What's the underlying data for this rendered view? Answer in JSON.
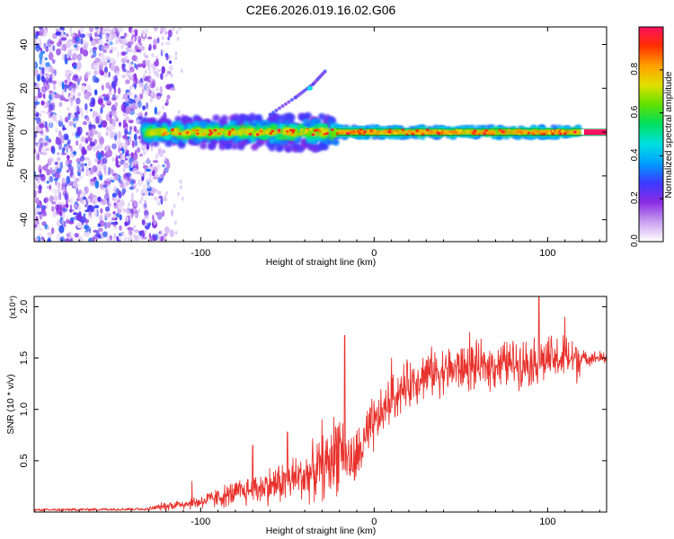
{
  "title": "C2E6.2026.019.16.02.G06",
  "colors": {
    "snr_line": "#e8322c",
    "frame": "#000000",
    "spectrum_line": "#008a3c"
  },
  "chart_data": [
    {
      "type": "heatmap",
      "xlabel": "Height of straight line (km)",
      "ylabel": "Frequency (Hz)",
      "xlim": [
        -196,
        134
      ],
      "ylim": [
        -50,
        48
      ],
      "x_ticks": [
        -100,
        0,
        100
      ],
      "x_tick_labels": [
        "-100",
        "0",
        "100"
      ],
      "y_ticks": [
        -40,
        -20,
        0,
        20,
        40
      ],
      "y_tick_labels": [
        "-40",
        "-20",
        "0",
        "20",
        "40"
      ],
      "colorbar": {
        "label": "Normalized spectral amplitude",
        "range": [
          0,
          1
        ],
        "ticks": [
          0.0,
          0.2,
          0.4,
          0.6,
          0.8
        ],
        "tick_labels": [
          "0.0",
          "0.2",
          "0.4",
          "0.6",
          "0.8"
        ],
        "colormap": [
          "#ffffff",
          "#c8a0f0",
          "#8a2be2",
          "#3a3aff",
          "#00a0ff",
          "#00e0e0",
          "#00e060",
          "#60e000",
          "#e0e000",
          "#ffa000",
          "#ff3000",
          "#ff1060"
        ]
      },
      "features": {
        "noise_region_x": [
          -196,
          -120
        ],
        "noise_fade_x": [
          -140,
          -115
        ],
        "band_center_hz": 0,
        "band_start_x": -133,
        "band_broad_end_x": -22,
        "band_end_x": 118,
        "spectral_line_hz": -1.5,
        "faint_arc": [
          [
            -60,
            8
          ],
          [
            -45,
            16
          ],
          [
            -35,
            22
          ],
          [
            -28,
            28
          ]
        ]
      }
    },
    {
      "type": "line",
      "xlabel": "Height of straight line (km)",
      "ylabel": "SNR (10 * v/v)",
      "y_scale_label": "(x10⁴)",
      "xlim": [
        -196,
        134
      ],
      "ylim": [
        0,
        2.1
      ],
      "x_ticks": [
        -100,
        0,
        100
      ],
      "x_tick_labels": [
        "-100",
        "0",
        "100"
      ],
      "y_ticks": [
        0.5,
        1.0,
        1.5,
        2.0
      ],
      "y_tick_labels": [
        "0.5",
        "1.0",
        "1.5",
        "2.0"
      ],
      "series": [
        {
          "name": "SNR",
          "trend": [
            [
              -196,
              0.02
            ],
            [
              -130,
              0.03
            ],
            [
              -120,
              0.06
            ],
            [
              -100,
              0.1
            ],
            [
              -80,
              0.18
            ],
            [
              -60,
              0.26
            ],
            [
              -40,
              0.35
            ],
            [
              -25,
              0.48
            ],
            [
              -20,
              0.7
            ],
            [
              -16,
              0.55
            ],
            [
              -12,
              0.45
            ],
            [
              -8,
              0.6
            ],
            [
              0,
              0.85
            ],
            [
              10,
              1.1
            ],
            [
              20,
              1.25
            ],
            [
              30,
              1.35
            ],
            [
              50,
              1.4
            ],
            [
              80,
              1.45
            ],
            [
              100,
              1.48
            ],
            [
              118,
              1.5
            ],
            [
              134,
              1.5
            ]
          ],
          "spikes": [
            [
              -105,
              0.3
            ],
            [
              -70,
              0.65
            ],
            [
              -50,
              0.78
            ],
            [
              -30,
              0.9
            ],
            [
              -17,
              1.72
            ],
            [
              10,
              1.5
            ],
            [
              55,
              1.75
            ],
            [
              95,
              2.1
            ],
            [
              110,
              1.9
            ]
          ]
        }
      ]
    }
  ]
}
